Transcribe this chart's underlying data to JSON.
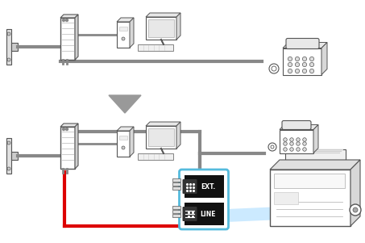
{
  "bg_color": "#ffffff",
  "gray": "#888888",
  "dgray": "#555555",
  "lgray": "#cccccc",
  "red": "#dd0000",
  "cyan_border": "#55bbdd",
  "cyan_fill": "#aaddff",
  "black": "#111111",
  "white": "#ffffff",
  "arrow_gray": "#999999",
  "lw_cable": 3.0,
  "lw_thin": 1.0,
  "figsize": [
    4.53,
    3.01
  ],
  "dpi": 100,
  "ext_text": "EXT.",
  "line_text": "LINE"
}
